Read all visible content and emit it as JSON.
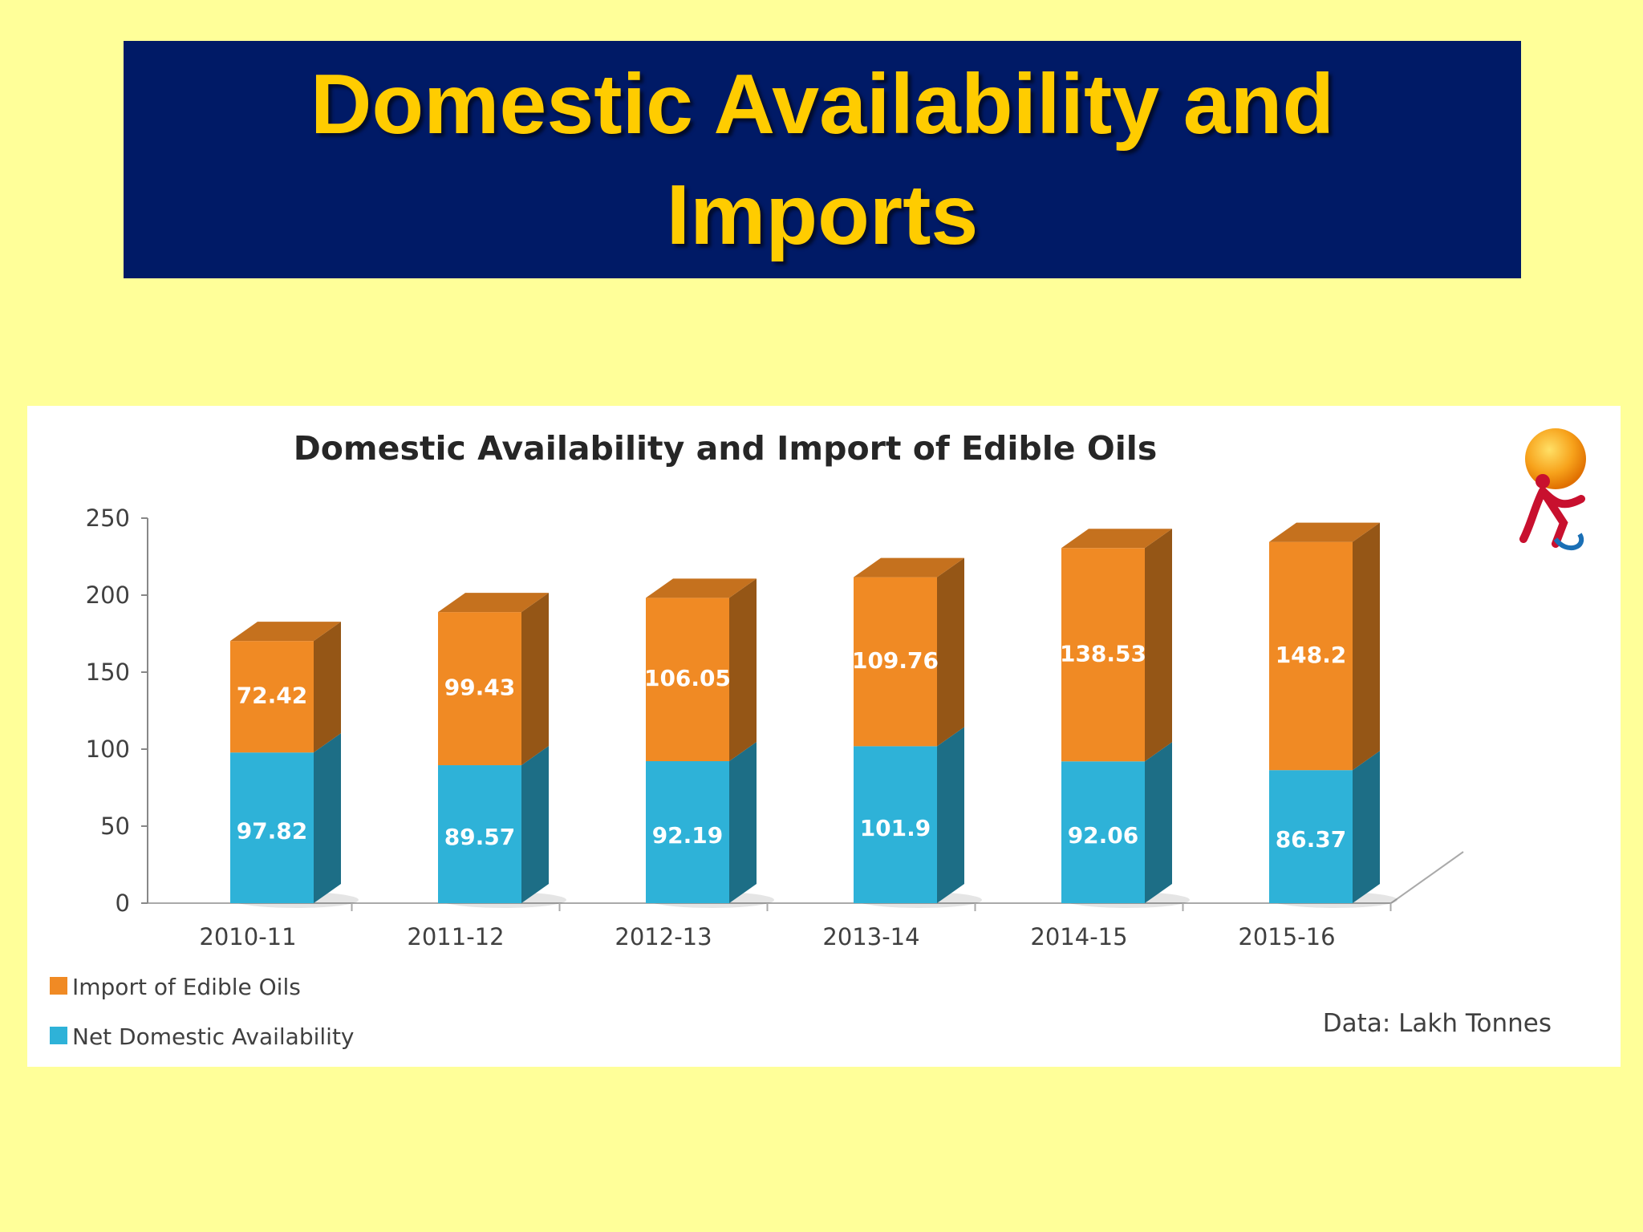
{
  "slide": {
    "title": "Domestic Availability and Imports"
  },
  "chart_data": {
    "type": "bar",
    "stacked": true,
    "style": "3d",
    "title": "Domestic Availability and Import of Edible Oils",
    "categories": [
      "2010-11",
      "2011-12",
      "2012-13",
      "2013-14",
      "2014-15",
      "2015-16"
    ],
    "series": [
      {
        "name": "Net Domestic Availability",
        "values": [
          97.82,
          89.57,
          92.19,
          101.9,
          92.06,
          86.37
        ],
        "color": "#2eb2d8"
      },
      {
        "name": "Import of Edible Oils",
        "values": [
          72.42,
          99.43,
          106.05,
          109.76,
          138.53,
          148.2
        ],
        "color": "#f08a24"
      }
    ],
    "legend_order": [
      "Import of Edible Oils",
      "Net Domestic Availability"
    ],
    "y_ticks": [
      "0",
      "50",
      "100",
      "150",
      "200",
      "250"
    ],
    "ylim": [
      0,
      250
    ],
    "legend_position": "bottom-left",
    "grid": false,
    "note": "Data: Lakh Tonnes"
  },
  "logo": {
    "icon": "sun-runner-logo-icon"
  },
  "colors": {
    "background": "#ffff99",
    "banner": "#001a66",
    "title": "#ffcc00"
  }
}
